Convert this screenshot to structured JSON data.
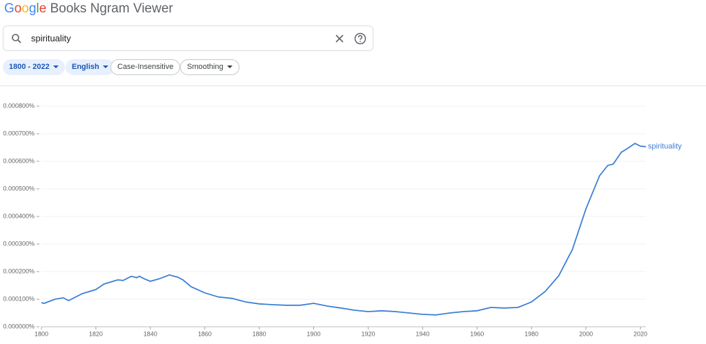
{
  "header": {
    "logo": "Google",
    "title": "Books Ngram Viewer"
  },
  "search": {
    "query": "spirituality"
  },
  "filters": [
    "1800 - 2022",
    "English",
    "Case-Insensitive",
    "Smoothing"
  ],
  "chart_data": {
    "type": "line",
    "x": [
      1800,
      1801,
      1805,
      1808,
      1810,
      1815,
      1820,
      1823,
      1828,
      1830,
      1833,
      1835,
      1836,
      1838,
      1840,
      1843,
      1847,
      1850,
      1852,
      1855,
      1860,
      1865,
      1870,
      1875,
      1880,
      1885,
      1890,
      1895,
      1900,
      1905,
      1910,
      1915,
      1920,
      1925,
      1930,
      1935,
      1940,
      1945,
      1950,
      1955,
      1960,
      1965,
      1970,
      1975,
      1980,
      1985,
      1990,
      1995,
      2000,
      2005,
      2008,
      2010,
      2013,
      2015,
      2018,
      2020,
      2022
    ],
    "series": [
      {
        "name": "spirituality",
        "color": "#3b7fd4",
        "values": [
          8.75e-05,
          8.5e-05,
          0.0001,
          0.000105,
          9.5e-05,
          0.00012,
          0.000135,
          0.000155,
          0.00017,
          0.000168,
          0.000183,
          0.000178,
          0.000183,
          0.000173,
          0.000165,
          0.000173,
          0.000188,
          0.00018,
          0.00017,
          0.000145,
          0.000123,
          0.000108,
          0.000103,
          9e-05,
          8.3e-05,
          8e-05,
          7.8e-05,
          7.8e-05,
          8.5e-05,
          7.5e-05,
          6.8e-05,
          6e-05,
          5.5e-05,
          5.8e-05,
          5.5e-05,
          5e-05,
          4.5e-05,
          4.3e-05,
          5e-05,
          5.5e-05,
          5.8e-05,
          7e-05,
          6.8e-05,
          7e-05,
          9e-05,
          0.000128,
          0.000185,
          0.00028,
          0.000428,
          0.000548,
          0.000585,
          0.00059,
          0.000633,
          0.000645,
          0.000665,
          0.000655,
          0.000653
        ]
      }
    ],
    "xlim": [
      1800,
      2022
    ],
    "xticks": [
      1800,
      1820,
      1840,
      1860,
      1880,
      1900,
      1920,
      1940,
      1960,
      1980,
      2000,
      2020
    ],
    "ylim": [
      0,
      0.0008
    ],
    "yticks": [
      {
        "value": 0,
        "label": "0.000000%"
      },
      {
        "value": 0.0001,
        "label": "0.000100%"
      },
      {
        "value": 0.0002,
        "label": "0.000200%"
      },
      {
        "value": 0.0003,
        "label": "0.000300%"
      },
      {
        "value": 0.0004,
        "label": "0.000400%"
      },
      {
        "value": 0.0005,
        "label": "0.000500%"
      },
      {
        "value": 0.0006,
        "label": "0.000600%"
      },
      {
        "value": 0.0007,
        "label": "0.000700%"
      },
      {
        "value": 0.0008,
        "label": "0.000800%"
      }
    ],
    "grid": true
  }
}
